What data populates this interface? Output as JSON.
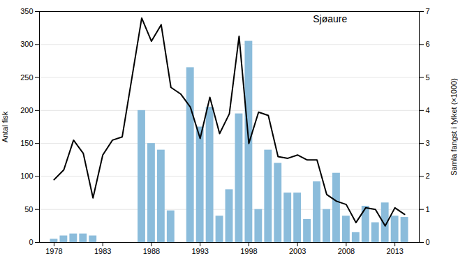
{
  "chart_data": {
    "type": "bar",
    "annotation": "Sjøaure",
    "ylabel": "Antal fisk",
    "y2label": "Samla fangst i fylket (×1000)",
    "xlim": [
      1976.5,
      2015.5
    ],
    "xticks": [
      1978,
      1983,
      1988,
      1993,
      1998,
      2003,
      2008,
      2013
    ],
    "ylim": [
      0,
      350
    ],
    "yticks": [
      0,
      50,
      100,
      150,
      200,
      250,
      300,
      350
    ],
    "y2lim": [
      0,
      7
    ],
    "y2ticks": [
      0,
      1,
      2,
      3,
      4,
      5,
      6,
      7
    ],
    "grid": true,
    "series": [
      {
        "type": "bar",
        "color": "#8bbcdb",
        "x": [
          1978,
          1979,
          1980,
          1981,
          1982,
          1987,
          1988,
          1989,
          1990,
          1992,
          1993,
          1994,
          1995,
          1996,
          1997,
          1998,
          1999,
          2000,
          2001,
          2002,
          2003,
          2004,
          2005,
          2006,
          2007,
          2008,
          2009,
          2010,
          2011,
          2012,
          2013,
          2014
        ],
        "values": [
          5,
          10,
          13,
          13,
          10,
          200,
          150,
          140,
          48,
          265,
          175,
          205,
          40,
          80,
          195,
          305,
          50,
          140,
          120,
          75,
          75,
          35,
          92,
          50,
          105,
          40,
          15,
          55,
          30,
          60,
          40,
          38
        ]
      },
      {
        "type": "line",
        "axis": "y2",
        "color": "#000000",
        "x": [
          1978,
          1979,
          1980,
          1981,
          1982,
          1983,
          1984,
          1985,
          1986,
          1987,
          1988,
          1989,
          1990,
          1991,
          1992,
          1993,
          1994,
          1995,
          1996,
          1997,
          1998,
          1999,
          2000,
          2001,
          2002,
          2003,
          2004,
          2005,
          2006,
          2007,
          2008,
          2009,
          2010,
          2011,
          2012,
          2013,
          2014
        ],
        "values": [
          1.9,
          2.2,
          3.1,
          2.7,
          1.35,
          2.65,
          3.1,
          3.2,
          5.0,
          6.8,
          6.1,
          6.6,
          4.7,
          4.5,
          4.1,
          3.15,
          4.4,
          3.3,
          3.9,
          6.25,
          3.0,
          3.95,
          3.85,
          2.6,
          2.55,
          2.65,
          2.5,
          2.5,
          1.45,
          1.25,
          1.15,
          0.6,
          1.05,
          1.0,
          0.5,
          1.05,
          0.85
        ]
      }
    ]
  }
}
